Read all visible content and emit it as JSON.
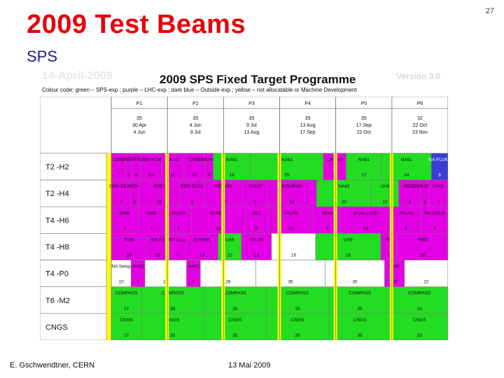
{
  "slide": {
    "number": "27",
    "title": "2009 Test Beams",
    "subtitle": "SPS",
    "footer_author": "E. Gschwendtner, CERN",
    "footer_date": "13 Mai 2009"
  },
  "schedule": {
    "stamp": "14-April-2009",
    "title": "2009 SPS Fixed Target Programme",
    "version": "Version 3.0",
    "color_code": "Colour code: green – SPS-exp ; purple – LHC-exp ; dark blue – Outside exp ; yellow – not allocatable or Machine Development",
    "colors": {
      "green": "#22dd22",
      "purple": "#e400e4",
      "blue": "#3b3bd6",
      "yellow": "#ffff00",
      "white": "#ffffff",
      "grid": "#777777"
    },
    "periods": [
      {
        "name": "P1",
        "days": "35",
        "start": "30 Apr",
        "end": "4 Jun"
      },
      {
        "name": "P2",
        "days": "35",
        "start": "4 Jun",
        "end": "9 Jul"
      },
      {
        "name": "P3",
        "days": "35",
        "start": "9 Jul",
        "end": "13 Aug"
      },
      {
        "name": "P4",
        "days": "35",
        "start": "13 Aug",
        "end": "17 Sep"
      },
      {
        "name": "P5",
        "days": "35",
        "start": "17 Sep",
        "end": "22 Oct"
      },
      {
        "name": "P6",
        "days": "32",
        "start": "22 Oct",
        "end": "23 Nov"
      }
    ],
    "lines": [
      {
        "name": "T2 -H2",
        "blocks": [
          {
            "label": "CMS",
            "days": "7",
            "color": "purple"
          },
          {
            "label": "CREAM",
            "days": "3",
            "color": "purple"
          },
          {
            "label": "TRTH",
            "days": "4",
            "color": "purple"
          },
          {
            "label": "CMS HCAL",
            "days": "10",
            "color": "purple"
          },
          {
            "label": "CALO",
            "days": "11",
            "color": "purple"
          },
          {
            "label": "CMS",
            "days": "10",
            "color": "purple"
          },
          {
            "label": "CMS HCAL",
            "days": "4",
            "color": "purple"
          },
          {
            "label": "NA61",
            "days": "18",
            "color": "green"
          },
          {
            "label": "NA61",
            "days": "35",
            "color": "green"
          },
          {
            "label": "CREAM",
            "days": "11",
            "color": "purple"
          },
          {
            "label": "NA61",
            "days": "17",
            "color": "green"
          },
          {
            "label": "NA61",
            "days": "24",
            "color": "green"
          },
          {
            "label": "NA-FLUKA",
            "days": "8",
            "color": "blue"
          }
        ]
      },
      {
        "name": "T2 -H4",
        "blocks": [
          {
            "label": "CMS ECAL",
            "days": "7",
            "color": "purple"
          },
          {
            "label": "BCM",
            "days": "3",
            "color": "purple"
          },
          {
            "label": "RD51",
            "days": "15",
            "color": "purple"
          },
          {
            "label": "CMS ECAL",
            "days": "9",
            "color": "purple"
          },
          {
            "label": "DREAM",
            "days": "14",
            "color": "purple"
          },
          {
            "label": "CALO",
            "days": "9",
            "color": "purple"
          },
          {
            "label": "INSURAD",
            "days": "18",
            "color": "purple"
          },
          {
            "label": "NA63",
            "days": "20",
            "color": "green"
          },
          {
            "label": "UA9",
            "days": "10",
            "color": "green"
          },
          {
            "label": "RD51",
            "days": "8",
            "color": "purple"
          },
          {
            "label": "CMS ECAL",
            "days": "3",
            "color": "purple"
          },
          {
            "label": "LHCf",
            "days": "7",
            "color": "purple"
          }
        ]
      },
      {
        "name": "T4 -H6",
        "blocks": [
          {
            "label": "BCM",
            "days": "7",
            "color": "purple"
          },
          {
            "label": "CMS",
            "days": "7",
            "color": "purple"
          },
          {
            "label": "ATLAS",
            "days": "7",
            "color": "purple"
          },
          {
            "label": "EUDET",
            "days": "14",
            "color": "purple"
          },
          {
            "label": "SiLC",
            "days": "6",
            "color": "purple"
          },
          {
            "label": "ATLAS",
            "days": "12",
            "color": "purple"
          },
          {
            "label": "BCM",
            "days": "7",
            "color": "purple"
          },
          {
            "label": "ATLAS LUCID",
            "days": "13",
            "color": "purple"
          },
          {
            "label": "ATLAS",
            "days": "8",
            "color": "purple"
          },
          {
            "label": "NA-CALO",
            "days": "7",
            "color": "purple"
          }
        ]
      },
      {
        "name": "T4 -H8",
        "blocks": [
          {
            "label": "TOSI",
            "days": "15",
            "color": "purple"
          },
          {
            "label": "ATLAS",
            "days": "10",
            "color": "purple"
          },
          {
            "label": "MDT Roman",
            "days": "7",
            "color": "purple"
          },
          {
            "label": "STRAW",
            "days": "14",
            "color": "purple"
          },
          {
            "label": "UA9",
            "days": "10",
            "color": "green"
          },
          {
            "label": "ATLAS",
            "days": "13",
            "color": "purple"
          },
          {
            "label": "",
            "days": "19",
            "color": "white"
          },
          {
            "label": "UA9",
            "days": "28",
            "color": "green"
          },
          {
            "label": "RP",
            "days": "7",
            "color": "purple"
          },
          {
            "label": "AMS",
            "days": "22",
            "color": "purple"
          }
        ]
      },
      {
        "name": "T4 -P0",
        "blocks": [
          {
            "label": "NA Setup",
            "days": "10",
            "color": "white"
          },
          {
            "label": "NA62",
            "days": "7",
            "color": "purple"
          },
          {
            "label": "",
            "days": "21",
            "color": "white"
          },
          {
            "label": "NA62",
            "days": "7",
            "color": "purple"
          },
          {
            "label": "",
            "days": "28",
            "color": "white"
          },
          {
            "label": "",
            "days": "35",
            "color": "white"
          },
          {
            "label": "",
            "days": "30",
            "color": "white"
          },
          {
            "label": "NA62",
            "days": "10",
            "color": "purple"
          },
          {
            "label": "",
            "days": "22",
            "color": "white"
          }
        ]
      },
      {
        "name": "T6 -M2",
        "blocks": [
          {
            "label": "COMPASS",
            "days": "17",
            "color": "green"
          },
          {
            "label": "COMPASS",
            "days": "35",
            "color": "green"
          },
          {
            "label": "COMPASS",
            "days": "35",
            "color": "green"
          },
          {
            "label": "COMPASS",
            "days": "35",
            "color": "green"
          },
          {
            "label": "COMPASS",
            "days": "35",
            "color": "green"
          },
          {
            "label": "COMPASS",
            "days": "32",
            "color": "green"
          }
        ]
      },
      {
        "name": "CNGS",
        "blocks": [
          {
            "label": "CNGS",
            "days": "17",
            "color": "green"
          },
          {
            "label": "CNGS",
            "days": "35",
            "color": "green"
          },
          {
            "label": "CNGS",
            "days": "35",
            "color": "green"
          },
          {
            "label": "CNGS",
            "days": "35",
            "color": "green"
          },
          {
            "label": "CNGS",
            "days": "35",
            "color": "green"
          },
          {
            "label": "CNGS",
            "days": "32",
            "color": "green"
          }
        ]
      }
    ]
  }
}
